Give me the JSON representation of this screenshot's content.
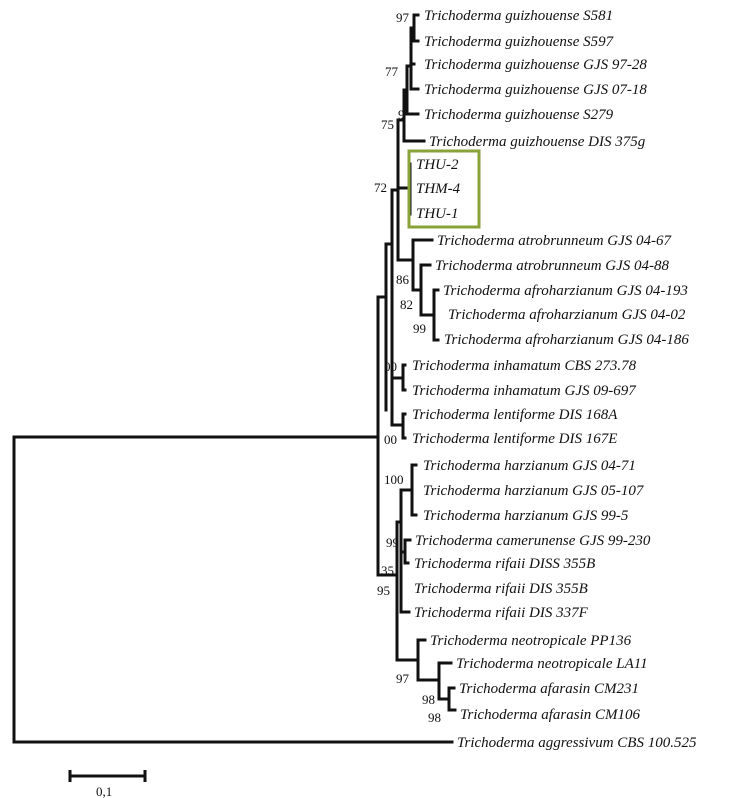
{
  "tree": {
    "taxa": {
      "t01": "Trichoderma guizhouense S581",
      "t02": "Trichoderma guizhouense S597",
      "t03": "Trichoderma guizhouense GJS 97-28",
      "t04": "Trichoderma guizhouense GJS 07-18",
      "t05": "Trichoderma guizhouense S279",
      "t06": "Trichoderma guizhouense DIS 375g",
      "t07": "THU-2",
      "t08": "THM-4",
      "t09": "THU-1",
      "t10": "Trichoderma atrobrunneum GJS 04-67",
      "t11": "Trichoderma atrobrunneum GJS 04-88",
      "t12": "Trichoderma afroharzianum GJS 04-193",
      "t13": "Trichoderma afroharzianum GJS 04-02",
      "t14": "Trichoderma afroharzianum GJS 04-186",
      "t15": "Trichoderma inhamatum CBS 273.78",
      "t16": "Trichoderma inhamatum GJS 09-697",
      "t17": "Trichoderma lentiforme DIS 168A",
      "t18": "Trichoderma lentiforme DIS 167E",
      "t19": "Trichoderma harzianum GJS 04-71",
      "t20": "Trichoderma harzianum GJS 05-107",
      "t21": "Trichoderma harzianum GJS 99-5",
      "t22": "Trichoderma camerunense GJS 99-230",
      "t23": "Trichoderma rifaii DISS 355B",
      "t24": "Trichoderma rifaii DIS 355B",
      "t25": "Trichoderma rifaii DIS 337F",
      "t26": "Trichoderma neotropicale PP136",
      "t27": "Trichoderma neotropicale LA11",
      "t28": "Trichoderma afarasin CM231",
      "t29": "Trichoderma afarasin CM106",
      "t30": "Trichoderma  aggressivum CBS 100.525"
    },
    "bootstrap": {
      "b97a": "97",
      "b77": "77",
      "b9": "9",
      "b75": "75",
      "b72": "72",
      "b86": "86",
      "b82": "82",
      "b99a": "99",
      "b00a": "00",
      "b00b": "00",
      "b100": "100",
      "b99b": "99",
      "b35": "35",
      "b95": "95",
      "b97b": "97",
      "b98a": "98",
      "b98b": "98"
    },
    "highlight_color": "#8aa23a",
    "branch_color": "#111111"
  },
  "scale_bar": {
    "label": "0,1"
  }
}
